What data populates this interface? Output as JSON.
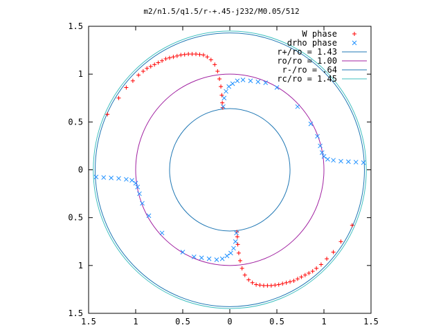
{
  "chart_data": {
    "type": "scatter",
    "title": "m2/n1.5/q1.5/r-+.45-j232/M0.05/512",
    "xlim": [
      -1.5,
      1.5
    ],
    "ylim": [
      -1.5,
      1.5
    ],
    "grid": false,
    "legend_position": "top-right",
    "x_ticks": [
      {
        "value": -1.5,
        "label": "1.5"
      },
      {
        "value": -1.0,
        "label": "1"
      },
      {
        "value": -0.5,
        "label": "0.5"
      },
      {
        "value": 0.0,
        "label": "0"
      },
      {
        "value": 0.5,
        "label": "0.5"
      },
      {
        "value": 1.0,
        "label": "1"
      },
      {
        "value": 1.5,
        "label": "1.5"
      }
    ],
    "y_ticks": [
      {
        "value": 1.5,
        "label": "1.5"
      },
      {
        "value": 1.0,
        "label": "1"
      },
      {
        "value": 0.5,
        "label": "0.5"
      },
      {
        "value": 0.0,
        "label": "0"
      },
      {
        "value": -0.5,
        "label": "0.5"
      },
      {
        "value": -1.0,
        "label": "1"
      },
      {
        "value": -1.5,
        "label": "1.5"
      }
    ],
    "circles": [
      {
        "name": "r+/ro = 1.43",
        "radius": 1.43,
        "color": "#1f77b4"
      },
      {
        "name": "ro/ro = 1.00",
        "radius": 1.0,
        "color": "#a020a0"
      },
      {
        "name": "r-/ro = .64",
        "radius": 0.64,
        "color": "#1f77b4"
      },
      {
        "name": "rc/ro = 1.45",
        "radius": 1.45,
        "color": "#40c0c0"
      }
    ],
    "series": [
      {
        "name": "W phase",
        "marker": "+",
        "color": "#ff0000",
        "points": [
          [
            -1.3,
            0.58
          ],
          [
            -1.18,
            0.75
          ],
          [
            -1.1,
            0.86
          ],
          [
            -1.03,
            0.93
          ],
          [
            -0.97,
            0.99
          ],
          [
            -0.92,
            1.03
          ],
          [
            -0.88,
            1.06
          ],
          [
            -0.84,
            1.08
          ],
          [
            -0.8,
            1.1
          ],
          [
            -0.76,
            1.12
          ],
          [
            -0.72,
            1.14
          ],
          [
            -0.68,
            1.16
          ],
          [
            -0.64,
            1.17
          ],
          [
            -0.6,
            1.18
          ],
          [
            -0.56,
            1.19
          ],
          [
            -0.52,
            1.2
          ],
          [
            -0.48,
            1.205
          ],
          [
            -0.44,
            1.21
          ],
          [
            -0.4,
            1.21
          ],
          [
            -0.36,
            1.21
          ],
          [
            -0.32,
            1.205
          ],
          [
            -0.28,
            1.2
          ],
          [
            -0.24,
            1.18
          ],
          [
            -0.2,
            1.15
          ],
          [
            -0.16,
            1.1
          ],
          [
            -0.13,
            1.03
          ],
          [
            -0.11,
            0.95
          ],
          [
            -0.095,
            0.87
          ],
          [
            -0.085,
            0.78
          ],
          [
            -0.08,
            0.7
          ],
          [
            -0.075,
            0.65
          ],
          [
            1.3,
            -0.58
          ],
          [
            1.18,
            -0.75
          ],
          [
            1.1,
            -0.86
          ],
          [
            1.03,
            -0.93
          ],
          [
            0.97,
            -0.99
          ],
          [
            0.92,
            -1.03
          ],
          [
            0.88,
            -1.06
          ],
          [
            0.84,
            -1.08
          ],
          [
            0.8,
            -1.1
          ],
          [
            0.76,
            -1.12
          ],
          [
            0.72,
            -1.14
          ],
          [
            0.68,
            -1.16
          ],
          [
            0.64,
            -1.17
          ],
          [
            0.6,
            -1.18
          ],
          [
            0.56,
            -1.19
          ],
          [
            0.52,
            -1.2
          ],
          [
            0.48,
            -1.205
          ],
          [
            0.44,
            -1.21
          ],
          [
            0.4,
            -1.21
          ],
          [
            0.36,
            -1.21
          ],
          [
            0.32,
            -1.205
          ],
          [
            0.28,
            -1.2
          ],
          [
            0.24,
            -1.18
          ],
          [
            0.2,
            -1.15
          ],
          [
            0.16,
            -1.1
          ],
          [
            0.13,
            -1.03
          ],
          [
            0.11,
            -0.95
          ],
          [
            0.095,
            -0.87
          ],
          [
            0.085,
            -0.78
          ],
          [
            0.08,
            -0.7
          ],
          [
            0.075,
            -0.65
          ]
        ]
      },
      {
        "name": "drho phase",
        "marker": "x",
        "color": "#1e90ff",
        "points": [
          [
            -0.07,
            0.66
          ],
          [
            -0.06,
            0.75
          ],
          [
            -0.04,
            0.82
          ],
          [
            -0.01,
            0.87
          ],
          [
            0.03,
            0.9
          ],
          [
            0.08,
            0.93
          ],
          [
            0.14,
            0.94
          ],
          [
            0.22,
            0.93
          ],
          [
            0.3,
            0.92
          ],
          [
            0.38,
            0.91
          ],
          [
            0.5,
            0.86
          ],
          [
            0.72,
            0.66
          ],
          [
            0.86,
            0.48
          ],
          [
            0.93,
            0.35
          ],
          [
            0.96,
            0.25
          ],
          [
            0.98,
            0.18
          ],
          [
            1.0,
            0.14
          ],
          [
            1.04,
            0.11
          ],
          [
            1.1,
            0.1
          ],
          [
            1.18,
            0.09
          ],
          [
            1.26,
            0.085
          ],
          [
            1.34,
            0.08
          ],
          [
            1.42,
            0.075
          ],
          [
            0.07,
            -0.66
          ],
          [
            0.06,
            -0.75
          ],
          [
            0.04,
            -0.82
          ],
          [
            0.01,
            -0.87
          ],
          [
            -0.03,
            -0.9
          ],
          [
            -0.08,
            -0.93
          ],
          [
            -0.14,
            -0.94
          ],
          [
            -0.22,
            -0.93
          ],
          [
            -0.3,
            -0.92
          ],
          [
            -0.38,
            -0.91
          ],
          [
            -0.5,
            -0.86
          ],
          [
            -0.72,
            -0.66
          ],
          [
            -0.86,
            -0.48
          ],
          [
            -0.93,
            -0.35
          ],
          [
            -0.96,
            -0.25
          ],
          [
            -0.98,
            -0.18
          ],
          [
            -1.0,
            -0.14
          ],
          [
            -1.04,
            -0.11
          ],
          [
            -1.1,
            -0.1
          ],
          [
            -1.18,
            -0.09
          ],
          [
            -1.26,
            -0.085
          ],
          [
            -1.34,
            -0.08
          ],
          [
            -1.42,
            -0.075
          ]
        ]
      }
    ]
  }
}
